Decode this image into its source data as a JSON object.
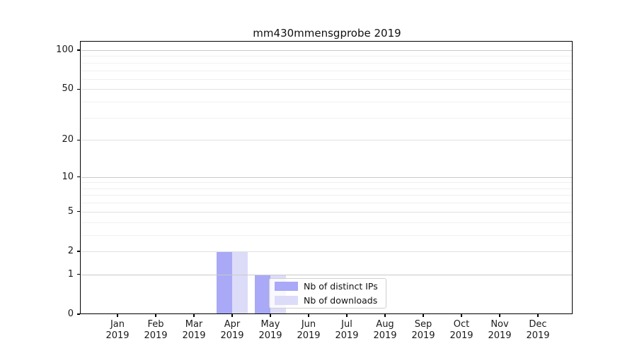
{
  "chart_data": {
    "type": "bar",
    "title": "mm430mmensgprobe 2019",
    "x_categories": [
      "Jan",
      "Feb",
      "Mar",
      "Apr",
      "May",
      "Jun",
      "Jul",
      "Aug",
      "Sep",
      "Oct",
      "Nov",
      "Dec"
    ],
    "x_year": "2019",
    "series": [
      {
        "name": "Nb of distinct IPs",
        "color": "#a9a9f7",
        "values": [
          0,
          0,
          0,
          2,
          1,
          0,
          0,
          0,
          0,
          0,
          0,
          0
        ]
      },
      {
        "name": "Nb of downloads",
        "color": "#dcdcf9",
        "values": [
          0,
          0,
          0,
          2,
          1,
          0,
          0,
          0,
          0,
          0,
          0,
          0
        ]
      }
    ],
    "y_scale": "log1p-symlog",
    "y_ticks": [
      0,
      1,
      2,
      5,
      10,
      20,
      50,
      100
    ],
    "y_minor_ticks": [
      3,
      4,
      6,
      7,
      8,
      9,
      30,
      40,
      60,
      70,
      80,
      90
    ],
    "ylim": [
      0,
      118
    ],
    "xlabel": "",
    "ylabel": "",
    "grid": "horizontal",
    "legend_position": "inside lower-center",
    "colors": {
      "grid_major": "#c9c9c9",
      "grid_mid": "#e1e1e1",
      "grid_minor": "#f0f0f0",
      "spine": "#000000",
      "legend_border": "#cfcfcf"
    }
  }
}
